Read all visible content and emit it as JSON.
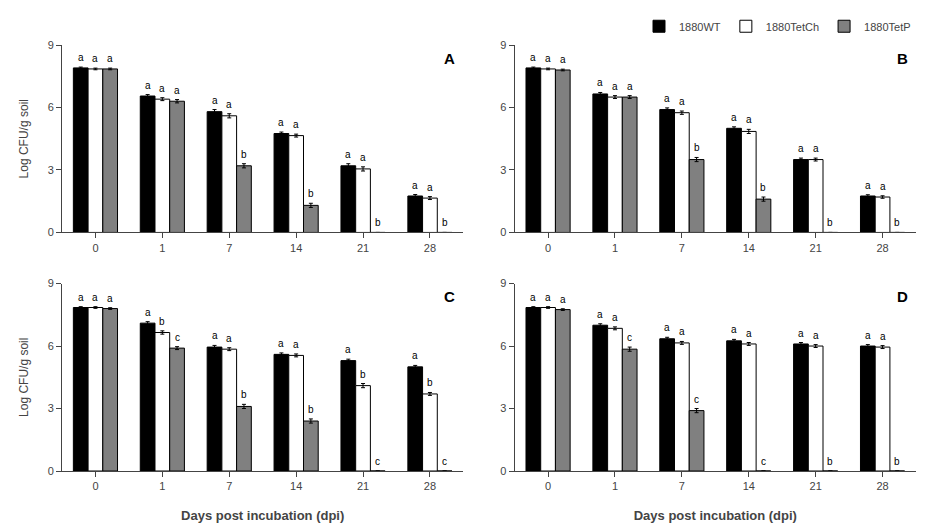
{
  "chart_data": [
    {
      "type": "bar",
      "title": "A",
      "categories": [
        "0",
        "1",
        "7",
        "14",
        "21",
        "28"
      ],
      "ylabel": "Log CFU/g soil",
      "ylim": [
        0,
        9
      ],
      "yticks": [
        0,
        3,
        6,
        9
      ],
      "grid": false,
      "series": [
        {
          "name": "1880WT",
          "color": "#000000",
          "values": [
            7.9,
            6.55,
            5.8,
            4.75,
            3.2,
            1.75
          ],
          "errors": [
            0.04,
            0.07,
            0.1,
            0.07,
            0.1,
            0.07
          ],
          "letters": [
            "a",
            "a",
            "a",
            "a",
            "a",
            "a"
          ]
        },
        {
          "name": "1880TetCh",
          "color": "#ffffff",
          "values": [
            7.85,
            6.4,
            5.6,
            4.65,
            3.05,
            1.65
          ],
          "errors": [
            0.04,
            0.07,
            0.1,
            0.07,
            0.1,
            0.07
          ],
          "letters": [
            "a",
            "a",
            "a",
            "a",
            "a",
            "a"
          ]
        },
        {
          "name": "1880TetP",
          "color": "#808080",
          "values": [
            7.85,
            6.3,
            3.2,
            1.3,
            0.0,
            0.0
          ],
          "errors": [
            0.04,
            0.08,
            0.1,
            0.1,
            0.0,
            0.0
          ],
          "letters": [
            "a",
            "a",
            "b",
            "b",
            "b",
            "b"
          ]
        }
      ]
    },
    {
      "type": "bar",
      "title": "B",
      "categories": [
        "0",
        "1",
        "7",
        "14",
        "21",
        "28"
      ],
      "ylim": [
        0,
        9
      ],
      "yticks": [
        0,
        3,
        6,
        9
      ],
      "grid": false,
      "legend": "upper right",
      "series": [
        {
          "name": "1880WT",
          "color": "#000000",
          "values": [
            7.9,
            6.65,
            5.9,
            5.0,
            3.5,
            1.75
          ],
          "errors": [
            0.04,
            0.07,
            0.08,
            0.07,
            0.07,
            0.06
          ],
          "letters": [
            "a",
            "a",
            "a",
            "a",
            "a",
            "a"
          ]
        },
        {
          "name": "1880TetCh",
          "color": "#ffffff",
          "values": [
            7.85,
            6.5,
            5.75,
            4.85,
            3.5,
            1.7
          ],
          "errors": [
            0.04,
            0.07,
            0.08,
            0.1,
            0.07,
            0.06
          ],
          "letters": [
            "a",
            "a",
            "a",
            "a",
            "a",
            "a"
          ]
        },
        {
          "name": "1880TetP",
          "color": "#808080",
          "values": [
            7.8,
            6.5,
            3.5,
            1.6,
            0.0,
            0.0
          ],
          "errors": [
            0.04,
            0.07,
            0.1,
            0.1,
            0.0,
            0.0
          ],
          "letters": [
            "a",
            "a",
            "b",
            "b",
            "b",
            "b"
          ]
        }
      ]
    },
    {
      "type": "bar",
      "title": "C",
      "categories": [
        "0",
        "1",
        "7",
        "14",
        "21",
        "28"
      ],
      "xlabel": "Days post incubation (dpi)",
      "ylabel": "Log CFU/g soil",
      "ylim": [
        0,
        9
      ],
      "yticks": [
        0,
        3,
        6,
        9
      ],
      "grid": false,
      "series": [
        {
          "name": "1880WT",
          "color": "#000000",
          "values": [
            7.85,
            7.1,
            5.95,
            5.6,
            5.3,
            5.0
          ],
          "errors": [
            0.04,
            0.07,
            0.08,
            0.07,
            0.07,
            0.07
          ],
          "letters": [
            "a",
            "a",
            "a",
            "a",
            "a",
            "a"
          ]
        },
        {
          "name": "1880TetCh",
          "color": "#ffffff",
          "values": [
            7.85,
            6.65,
            5.85,
            5.55,
            4.1,
            3.7
          ],
          "errors": [
            0.04,
            0.08,
            0.07,
            0.07,
            0.1,
            0.07
          ],
          "letters": [
            "a",
            "b",
            "a",
            "a",
            "b",
            "b"
          ]
        },
        {
          "name": "1880TetP",
          "color": "#808080",
          "values": [
            7.8,
            5.9,
            3.1,
            2.4,
            0.0,
            0.0
          ],
          "errors": [
            0.04,
            0.07,
            0.1,
            0.1,
            0.0,
            0.0
          ],
          "letters": [
            "a",
            "c",
            "b",
            "b",
            "c",
            "c"
          ]
        }
      ]
    },
    {
      "type": "bar",
      "title": "D",
      "categories": [
        "0",
        "1",
        "7",
        "14",
        "21",
        "28"
      ],
      "xlabel": "Days post incubation (dpi)",
      "ylim": [
        0,
        9
      ],
      "yticks": [
        0,
        3,
        6,
        9
      ],
      "grid": false,
      "series": [
        {
          "name": "1880WT",
          "color": "#000000",
          "values": [
            7.85,
            7.0,
            6.35,
            6.25,
            6.1,
            6.0
          ],
          "errors": [
            0.04,
            0.07,
            0.07,
            0.07,
            0.07,
            0.07
          ],
          "letters": [
            "a",
            "a",
            "a",
            "a",
            "a",
            "a"
          ]
        },
        {
          "name": "1880TetCh",
          "color": "#ffffff",
          "values": [
            7.85,
            6.85,
            6.15,
            6.1,
            6.0,
            5.95
          ],
          "errors": [
            0.04,
            0.07,
            0.07,
            0.07,
            0.07,
            0.07
          ],
          "letters": [
            "a",
            "a",
            "a",
            "a",
            "a",
            "a"
          ]
        },
        {
          "name": "1880TetP",
          "color": "#808080",
          "values": [
            7.75,
            5.85,
            2.9,
            0.0,
            0.0,
            0.0
          ],
          "errors": [
            0.04,
            0.1,
            0.1,
            0.0,
            0.0,
            0.0
          ],
          "letters": [
            "a",
            "c",
            "c",
            "c",
            "b",
            "b"
          ]
        }
      ]
    }
  ]
}
